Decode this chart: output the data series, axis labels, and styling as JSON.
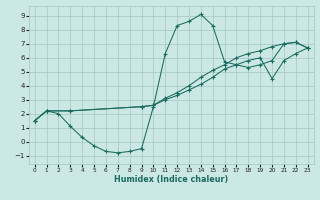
{
  "xlabel": "Humidex (Indice chaleur)",
  "background_color": "#cce8e4",
  "grid_color": "#aaccc8",
  "line_color": "#1a6b60",
  "xlim": [
    -0.5,
    23.5
  ],
  "ylim": [
    -1.6,
    9.7
  ],
  "xticks": [
    0,
    1,
    2,
    3,
    4,
    5,
    6,
    7,
    8,
    9,
    10,
    11,
    12,
    13,
    14,
    15,
    16,
    17,
    18,
    19,
    20,
    21,
    22,
    23
  ],
  "yticks": [
    -1,
    0,
    1,
    2,
    3,
    4,
    5,
    6,
    7,
    8,
    9
  ],
  "curve1_x": [
    0,
    1,
    2,
    3,
    4,
    5,
    6,
    7,
    8,
    9,
    10,
    11,
    12,
    13,
    14,
    15,
    16,
    17,
    18,
    19,
    20,
    21,
    22,
    23
  ],
  "curve1_y": [
    1.5,
    2.2,
    2.0,
    1.1,
    0.3,
    -0.3,
    -0.7,
    -0.8,
    -0.7,
    -0.5,
    2.5,
    6.3,
    8.3,
    8.6,
    9.1,
    8.3,
    5.7,
    5.5,
    5.3,
    5.5,
    5.8,
    7.0,
    7.1,
    6.7
  ],
  "curve2_x": [
    0,
    1,
    3,
    9,
    10,
    11,
    12,
    13,
    14,
    15,
    16,
    17,
    18,
    19,
    20,
    21,
    22,
    23
  ],
  "curve2_y": [
    1.5,
    2.2,
    2.2,
    2.5,
    2.6,
    3.1,
    3.5,
    4.0,
    4.6,
    5.1,
    5.5,
    6.0,
    6.3,
    6.5,
    6.8,
    7.0,
    7.1,
    6.7
  ],
  "curve3_x": [
    0,
    1,
    3,
    9,
    10,
    11,
    12,
    13,
    14,
    15,
    16,
    17,
    18,
    19,
    20,
    21,
    22,
    23
  ],
  "curve3_y": [
    1.5,
    2.2,
    2.2,
    2.5,
    2.6,
    3.0,
    3.3,
    3.7,
    4.1,
    4.6,
    5.2,
    5.5,
    5.8,
    6.0,
    4.5,
    5.8,
    6.3,
    6.7
  ]
}
